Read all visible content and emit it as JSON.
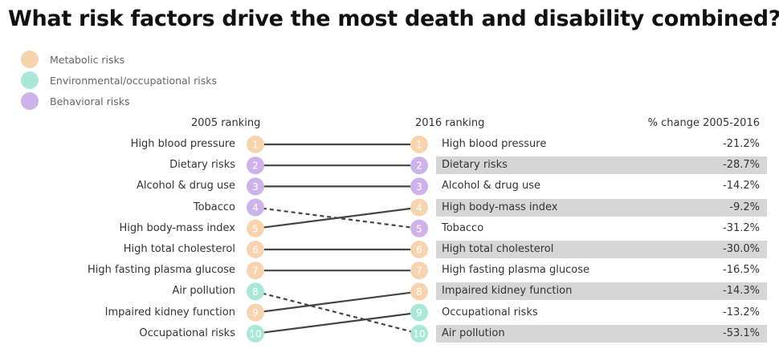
{
  "title": "What risk factors drive the most death and disability combined?",
  "legend": [
    {
      "label": "Metabolic risks",
      "color": "#f7d4ae"
    },
    {
      "label": "Environmental/occupational risks",
      "color": "#a9e8d7"
    },
    {
      "label": "Behavioral risks",
      "color": "#ceb3ea"
    }
  ],
  "chart_data": {
    "type": "slope",
    "title": "What risk factors drive the most death and disability combined?",
    "left_header": "2005 ranking",
    "right_header": "2016 ranking",
    "change_header": "% change 2005-2016",
    "ranking_2005": [
      {
        "rank": "1",
        "name": "High blood pressure",
        "category": 0
      },
      {
        "rank": "2",
        "name": "Dietary risks",
        "category": 2
      },
      {
        "rank": "3",
        "name": "Alcohol & drug use",
        "category": 2
      },
      {
        "rank": "4",
        "name": "Tobacco",
        "category": 2
      },
      {
        "rank": "5",
        "name": "High body-mass index",
        "category": 0
      },
      {
        "rank": "6",
        "name": "High total cholesterol",
        "category": 0
      },
      {
        "rank": "7",
        "name": "High fasting plasma glucose",
        "category": 0
      },
      {
        "rank": "8",
        "name": "Air pollution",
        "category": 1
      },
      {
        "rank": "9",
        "name": "Impaired kidney function",
        "category": 0
      },
      {
        "rank": "10",
        "name": "Occupational risks",
        "category": 1
      }
    ],
    "ranking_2016": [
      {
        "rank": "1",
        "name": "High blood pressure",
        "category": 0,
        "change": "-21.2%",
        "from": 1
      },
      {
        "rank": "2",
        "name": "Dietary risks",
        "category": 2,
        "change": "-28.7%",
        "from": 2
      },
      {
        "rank": "3",
        "name": "Alcohol & drug use",
        "category": 2,
        "change": "-14.2%",
        "from": 3
      },
      {
        "rank": "4",
        "name": "High body-mass index",
        "category": 0,
        "change": "-9.2%",
        "from": 5
      },
      {
        "rank": "5",
        "name": "Tobacco",
        "category": 2,
        "change": "-31.2%",
        "from": 4
      },
      {
        "rank": "6",
        "name": "High total cholesterol",
        "category": 0,
        "change": "-30.0%",
        "from": 6
      },
      {
        "rank": "7",
        "name": "High fasting plasma glucose",
        "category": 0,
        "change": "-16.5%",
        "from": 7
      },
      {
        "rank": "8",
        "name": "Impaired kidney function",
        "category": 0,
        "change": "-14.3%",
        "from": 9
      },
      {
        "rank": "9",
        "name": "Occupational risks",
        "category": 1,
        "change": "-13.2%",
        "from": 10
      },
      {
        "rank": "10",
        "name": "Air pollution",
        "category": 1,
        "change": "-53.1%",
        "from": 8
      }
    ],
    "line_styles": {
      "up_or_same": "solid",
      "down": "dashed"
    },
    "line_color": "#444444"
  }
}
